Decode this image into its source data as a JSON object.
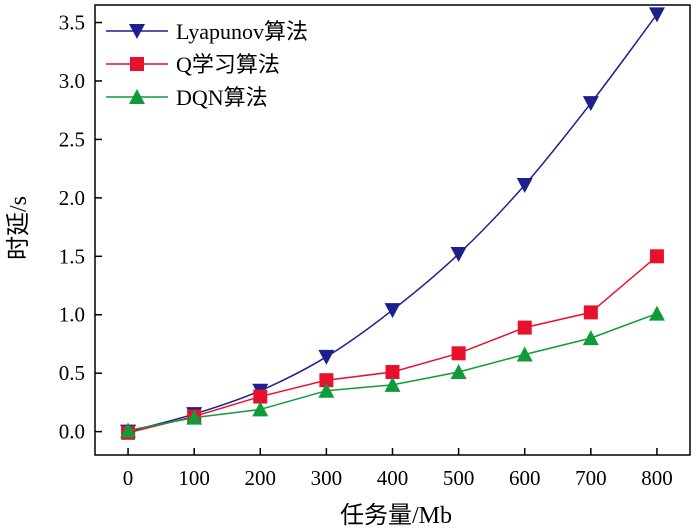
{
  "chart_data": {
    "type": "line",
    "title": "",
    "xlabel": "任务量/Mb",
    "ylabel": "时延/s",
    "x": [
      0,
      100,
      200,
      300,
      400,
      500,
      600,
      700,
      800
    ],
    "xlim": [
      -50,
      850
    ],
    "ylim": [
      -0.2,
      3.65
    ],
    "x_ticks": [
      0,
      100,
      200,
      300,
      400,
      500,
      600,
      700,
      800
    ],
    "y_ticks": [
      0.0,
      0.5,
      1.0,
      1.5,
      2.0,
      2.5,
      3.0,
      3.5
    ],
    "grid": false,
    "legend_position": "top-left",
    "series": [
      {
        "name": "Lyapunov算法",
        "values": [
          0.0,
          0.15,
          0.35,
          0.64,
          1.04,
          1.52,
          2.11,
          2.81,
          3.57
        ],
        "color": "#1c1f8c",
        "marker": "triangle-down",
        "smooth": true
      },
      {
        "name": "Q学习算法",
        "values": [
          -0.01,
          0.13,
          0.3,
          0.44,
          0.51,
          0.67,
          0.89,
          1.02,
          1.5
        ],
        "color": "#e8112d",
        "marker": "square",
        "smooth": false
      },
      {
        "name": "DQN算法",
        "values": [
          0.01,
          0.12,
          0.19,
          0.35,
          0.4,
          0.51,
          0.66,
          0.8,
          1.01
        ],
        "color": "#119a3a",
        "marker": "triangle-up",
        "smooth": false
      }
    ]
  }
}
